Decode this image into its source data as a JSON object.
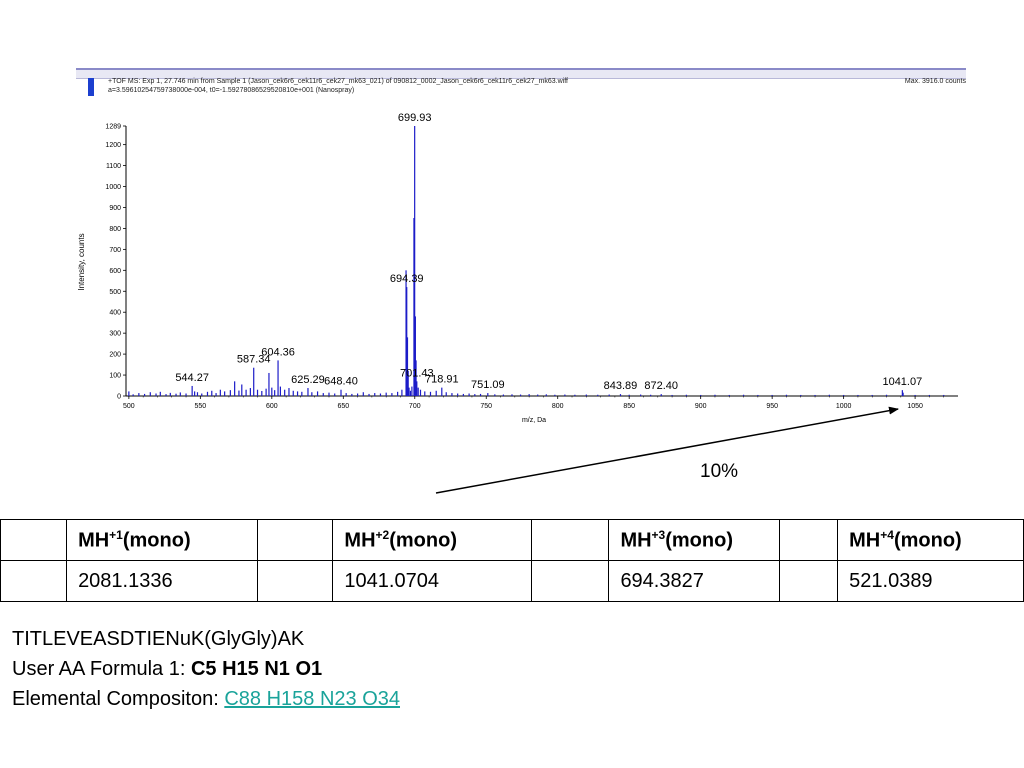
{
  "header": {
    "line1": "+TOF MS: Exp 1, 27.746 min from Sample 1 (Jason_cek6r6_cek11r6_cek27_mk63_021) of 090812_0002_Jason_cek6r6_cek11r6_cek27_mk63.wiff",
    "line2": "a=3.59610254759738000e-004, t0=-1.59278086529520810e+001 (Nanospray)",
    "max": "Max. 3916.0 counts"
  },
  "chart_data": {
    "type": "line",
    "xlabel": "m/z, Da",
    "ylabel": "Intensity, counts",
    "xlim": [
      498,
      1080
    ],
    "ylim": [
      0,
      1289
    ],
    "xticks": [
      500,
      550,
      600,
      650,
      700,
      750,
      800,
      850,
      900,
      950,
      1000,
      1050
    ],
    "yticks": [
      0,
      100,
      200,
      300,
      400,
      500,
      600,
      700,
      800,
      900,
      1000,
      1100,
      1200,
      1289
    ],
    "color": "#1c1cc8",
    "peaks": [
      {
        "x": 500,
        "y": 22
      },
      {
        "x": 503,
        "y": 8
      },
      {
        "x": 507,
        "y": 14
      },
      {
        "x": 511,
        "y": 10
      },
      {
        "x": 515,
        "y": 18
      },
      {
        "x": 519,
        "y": 12
      },
      {
        "x": 522,
        "y": 20
      },
      {
        "x": 526,
        "y": 9
      },
      {
        "x": 529,
        "y": 15
      },
      {
        "x": 533,
        "y": 11
      },
      {
        "x": 536,
        "y": 17
      },
      {
        "x": 540,
        "y": 12
      },
      {
        "x": 544.27,
        "y": 48
      },
      {
        "x": 546,
        "y": 22
      },
      {
        "x": 548,
        "y": 18
      },
      {
        "x": 551,
        "y": 12
      },
      {
        "x": 555,
        "y": 20
      },
      {
        "x": 558,
        "y": 25
      },
      {
        "x": 561,
        "y": 14
      },
      {
        "x": 564,
        "y": 30
      },
      {
        "x": 567,
        "y": 22
      },
      {
        "x": 571,
        "y": 28
      },
      {
        "x": 574,
        "y": 70
      },
      {
        "x": 577,
        "y": 26
      },
      {
        "x": 579,
        "y": 55
      },
      {
        "x": 582,
        "y": 30
      },
      {
        "x": 585,
        "y": 38
      },
      {
        "x": 587.34,
        "y": 135
      },
      {
        "x": 590,
        "y": 30
      },
      {
        "x": 593,
        "y": 24
      },
      {
        "x": 596,
        "y": 35
      },
      {
        "x": 598,
        "y": 110
      },
      {
        "x": 600,
        "y": 40
      },
      {
        "x": 602,
        "y": 28
      },
      {
        "x": 604.36,
        "y": 170
      },
      {
        "x": 606,
        "y": 45
      },
      {
        "x": 609,
        "y": 30
      },
      {
        "x": 612,
        "y": 38
      },
      {
        "x": 615,
        "y": 25
      },
      {
        "x": 618,
        "y": 22
      },
      {
        "x": 621,
        "y": 20
      },
      {
        "x": 625.29,
        "y": 38
      },
      {
        "x": 628,
        "y": 18
      },
      {
        "x": 632,
        "y": 22
      },
      {
        "x": 636,
        "y": 14
      },
      {
        "x": 640,
        "y": 16
      },
      {
        "x": 644,
        "y": 12
      },
      {
        "x": 648.4,
        "y": 30
      },
      {
        "x": 652,
        "y": 14
      },
      {
        "x": 656,
        "y": 10
      },
      {
        "x": 660,
        "y": 12
      },
      {
        "x": 664,
        "y": 18
      },
      {
        "x": 668,
        "y": 10
      },
      {
        "x": 672,
        "y": 14
      },
      {
        "x": 676,
        "y": 12
      },
      {
        "x": 680,
        "y": 16
      },
      {
        "x": 684,
        "y": 14
      },
      {
        "x": 688,
        "y": 20
      },
      {
        "x": 691,
        "y": 30
      },
      {
        "x": 693.9,
        "y": 600
      },
      {
        "x": 694.39,
        "y": 520
      },
      {
        "x": 694.9,
        "y": 280
      },
      {
        "x": 695.4,
        "y": 120
      },
      {
        "x": 696,
        "y": 40
      },
      {
        "x": 697,
        "y": 25
      },
      {
        "x": 698,
        "y": 45
      },
      {
        "x": 699.43,
        "y": 850
      },
      {
        "x": 699.93,
        "y": 1289
      },
      {
        "x": 700.43,
        "y": 380
      },
      {
        "x": 700.9,
        "y": 170
      },
      {
        "x": 701.43,
        "y": 70
      },
      {
        "x": 702.4,
        "y": 40
      },
      {
        "x": 704,
        "y": 30
      },
      {
        "x": 707,
        "y": 22
      },
      {
        "x": 711,
        "y": 20
      },
      {
        "x": 715,
        "y": 25
      },
      {
        "x": 718.91,
        "y": 40
      },
      {
        "x": 722,
        "y": 18
      },
      {
        "x": 726,
        "y": 14
      },
      {
        "x": 730,
        "y": 12
      },
      {
        "x": 734,
        "y": 10
      },
      {
        "x": 738,
        "y": 12
      },
      {
        "x": 742,
        "y": 9
      },
      {
        "x": 746,
        "y": 10
      },
      {
        "x": 751.09,
        "y": 14
      },
      {
        "x": 756,
        "y": 8
      },
      {
        "x": 762,
        "y": 7
      },
      {
        "x": 768,
        "y": 8
      },
      {
        "x": 774,
        "y": 7
      },
      {
        "x": 780,
        "y": 9
      },
      {
        "x": 786,
        "y": 7
      },
      {
        "x": 792,
        "y": 8
      },
      {
        "x": 798,
        "y": 6
      },
      {
        "x": 805,
        "y": 7
      },
      {
        "x": 812,
        "y": 6
      },
      {
        "x": 820,
        "y": 7
      },
      {
        "x": 828,
        "y": 6
      },
      {
        "x": 836,
        "y": 7
      },
      {
        "x": 843.89,
        "y": 9
      },
      {
        "x": 850,
        "y": 6
      },
      {
        "x": 858,
        "y": 7
      },
      {
        "x": 865,
        "y": 6
      },
      {
        "x": 872.4,
        "y": 9
      },
      {
        "x": 880,
        "y": 5
      },
      {
        "x": 890,
        "y": 6
      },
      {
        "x": 900,
        "y": 5
      },
      {
        "x": 910,
        "y": 6
      },
      {
        "x": 920,
        "y": 5
      },
      {
        "x": 930,
        "y": 6
      },
      {
        "x": 940,
        "y": 5
      },
      {
        "x": 950,
        "y": 5
      },
      {
        "x": 960,
        "y": 6
      },
      {
        "x": 970,
        "y": 5
      },
      {
        "x": 980,
        "y": 5
      },
      {
        "x": 990,
        "y": 6
      },
      {
        "x": 1000,
        "y": 5
      },
      {
        "x": 1010,
        "y": 5
      },
      {
        "x": 1020,
        "y": 5
      },
      {
        "x": 1030,
        "y": 6
      },
      {
        "x": 1041.07,
        "y": 28
      },
      {
        "x": 1041.6,
        "y": 16
      },
      {
        "x": 1050,
        "y": 5
      },
      {
        "x": 1060,
        "y": 5
      },
      {
        "x": 1070,
        "y": 5
      }
    ],
    "annotations": [
      {
        "text": "699.93",
        "x": 699.93,
        "y": 1289
      },
      {
        "text": "694.39",
        "x": 694.39,
        "y": 520
      },
      {
        "text": "604.36",
        "x": 604.36,
        "y": 170
      },
      {
        "text": "587.34",
        "x": 587.34,
        "y": 135
      },
      {
        "text": "544.27",
        "x": 544.27,
        "y": 48
      },
      {
        "text": "625.29",
        "x": 625.29,
        "y": 38
      },
      {
        "text": "648.40",
        "x": 648.4,
        "y": 30
      },
      {
        "text": "701.43",
        "x": 701.43,
        "y": 70
      },
      {
        "text": "718.91",
        "x": 718.91,
        "y": 40
      },
      {
        "text": "751.09",
        "x": 751.09,
        "y": 14
      },
      {
        "text": "843.89",
        "x": 843.89,
        "y": 9
      },
      {
        "text": "872.40",
        "x": 872.4,
        "y": 9
      },
      {
        "text": "1041.07",
        "x": 1041.07,
        "y": 28
      }
    ]
  },
  "callout": {
    "label": "10%"
  },
  "table": {
    "headers": [
      {
        "base": "MH",
        "sup": "+1",
        "suffix": "(mono)"
      },
      {
        "base": "MH",
        "sup": "+2",
        "suffix": "(mono)"
      },
      {
        "base": "MH",
        "sup": "+3",
        "suffix": "(mono)"
      },
      {
        "base": "MH",
        "sup": "+4",
        "suffix": "(mono)"
      }
    ],
    "values": [
      "2081.1336",
      "1041.0704",
      "694.3827",
      "521.0389"
    ]
  },
  "notes": {
    "sequence": "TITLEVEASDTIENuK(GlyGly)AK",
    "formula_label": "User AA Formula 1: ",
    "formula_value": "C5 H15 N1 O1",
    "composition_label": "Elemental Compositon: ",
    "composition_value": "C88 H158 N23 O34"
  }
}
